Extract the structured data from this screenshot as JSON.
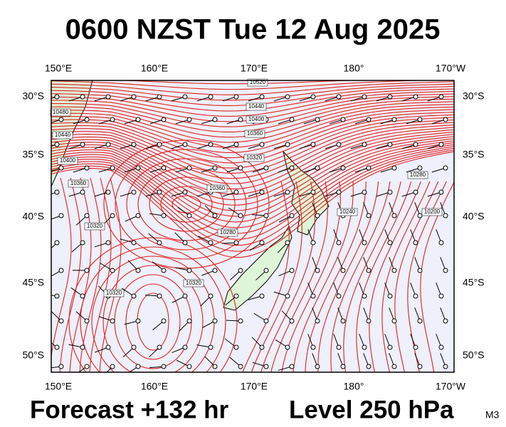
{
  "title": "0600 NZST Tue 12 Aug 2025",
  "longitude_labels": [
    "150°E",
    "160°E",
    "170°E",
    "180°",
    "170°W"
  ],
  "latitude_labels": [
    "30°S",
    "35°S",
    "40°S",
    "45°S",
    "50°S"
  ],
  "contour_labels": [
    "10520",
    "10480",
    "10440",
    "10400",
    "10360",
    "10320",
    "10280",
    "10240",
    "10200",
    "10440",
    "10400",
    "10360",
    "10320",
    "10360",
    "10280",
    "10320",
    "10320"
  ],
  "footer": {
    "forecast": "Forecast +132 hr",
    "level": "Level 250 hPa",
    "model": "M3"
  }
}
